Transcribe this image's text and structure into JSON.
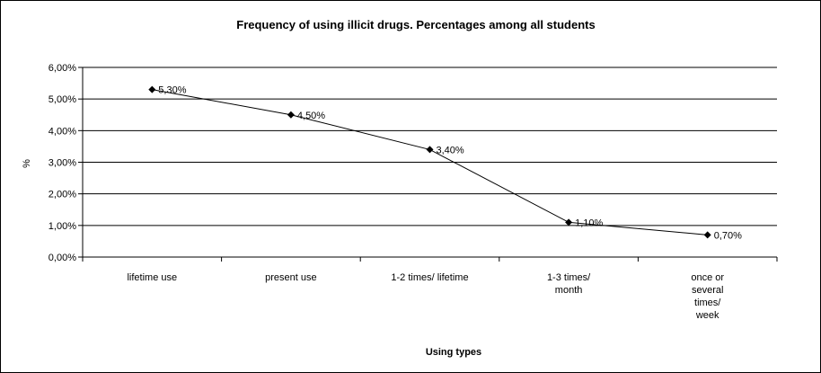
{
  "chart_data": {
    "type": "line",
    "title": "Frequency of using illicit drugs. Percentages among all students",
    "xlabel": "Using types",
    "ylabel": "%",
    "categories": [
      [
        "lifetime use"
      ],
      [
        "present use"
      ],
      [
        "1-2 times/ lifetime"
      ],
      [
        "1-3 times/",
        "month"
      ],
      [
        "once or",
        "several",
        "times/",
        "week"
      ]
    ],
    "series": [
      {
        "values": [
          5.3,
          4.5,
          3.4,
          1.1,
          0.7
        ]
      }
    ],
    "data_labels": [
      "5,30%",
      "4,50%",
      "3,40%",
      "1,10%",
      "0,70%"
    ],
    "y_ticks": [
      0,
      1,
      2,
      3,
      4,
      5,
      6
    ],
    "y_tick_labels": [
      "0,00%",
      "1,00%",
      "2,00%",
      "3,00%",
      "4,00%",
      "5,00%",
      "6,00%"
    ],
    "ylim": [
      0,
      6
    ],
    "grid": true,
    "legend": "none",
    "plot_background": "#ffffff",
    "line_color": "#000000"
  }
}
